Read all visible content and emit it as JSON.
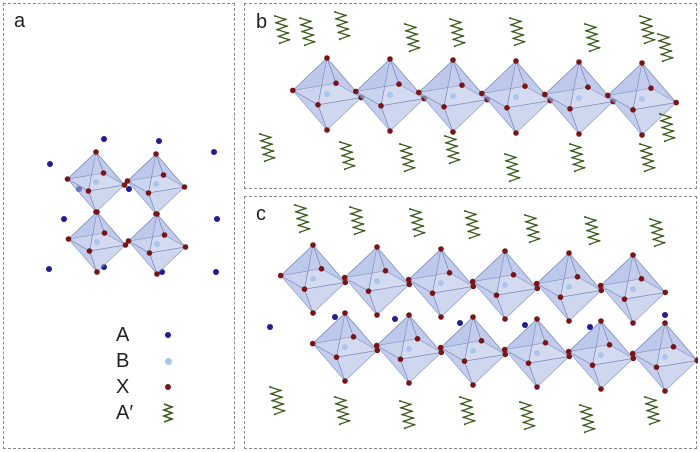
{
  "panels": {
    "a": {
      "label": "a"
    },
    "b": {
      "label": "b"
    },
    "c": {
      "label": "c"
    }
  },
  "legend": [
    {
      "label": "A",
      "symbol": "blue-sphere-icon"
    },
    {
      "label": "B",
      "symbol": "light-blue-sphere-icon"
    },
    {
      "label": "X",
      "symbol": "dark-red-sphere-icon"
    },
    {
      "label": "A′",
      "symbol": "zigzag-chain-icon"
    }
  ],
  "colors": {
    "octahedron_fill": "#9fb0e0",
    "octahedron_edge": "#6f7fb5",
    "a_cation": "#1f1f90",
    "b_cation": "#a8c6ec",
    "x_anion": "#7a1515",
    "spacer_chain": "#3a5a1a",
    "panel_border": "#8a8a8a"
  },
  "layers": {
    "panel_b": 1,
    "panel_c": 2
  }
}
